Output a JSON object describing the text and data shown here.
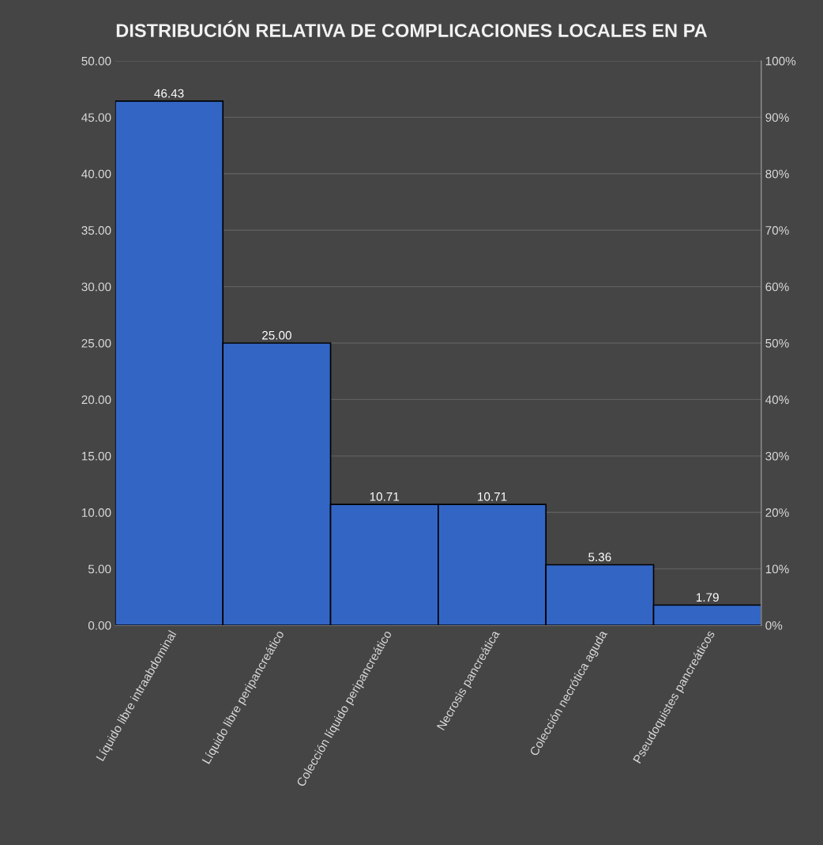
{
  "chart_data": {
    "type": "bar",
    "title": "DISTRIBUCIÓN RELATIVA DE COMPLICACIONES LOCALES EN PA",
    "categories": [
      "Líquido libre intraabdominal",
      "Líquido libre peripancreático",
      "Colección líquido peripancreático",
      "Necrosis pancreática",
      "Colección necrótica aguda",
      "Pseudoquistes pancreáticos"
    ],
    "values": [
      46.43,
      25.0,
      10.71,
      10.71,
      5.36,
      1.79
    ],
    "color": "#3366c4",
    "value_labels": [
      "46.43",
      "25.00",
      "10.71",
      "10.71",
      "5.36",
      "1.79"
    ],
    "ylim": [
      0,
      50
    ],
    "yticks": [
      {
        "value": 0,
        "label": "0.00"
      },
      {
        "value": 5,
        "label": "5.00"
      },
      {
        "value": 10,
        "label": "10.00"
      },
      {
        "value": 15,
        "label": "15.00"
      },
      {
        "value": 20,
        "label": "20.00"
      },
      {
        "value": 25,
        "label": "25.00"
      },
      {
        "value": 30,
        "label": "30.00"
      },
      {
        "value": 35,
        "label": "35.00"
      },
      {
        "value": 40,
        "label": "40.00"
      },
      {
        "value": 45,
        "label": "45.00"
      },
      {
        "value": 50,
        "label": "50.00"
      }
    ],
    "y2lim": [
      0,
      100
    ],
    "y2ticks": [
      {
        "value": 0,
        "label": "0%"
      },
      {
        "value": 10,
        "label": "10%"
      },
      {
        "value": 20,
        "label": "20%"
      },
      {
        "value": 30,
        "label": "30%"
      },
      {
        "value": 40,
        "label": "40%"
      },
      {
        "value": 50,
        "label": "50%"
      },
      {
        "value": 60,
        "label": "60%"
      },
      {
        "value": 70,
        "label": "70%"
      },
      {
        "value": 80,
        "label": "80%"
      },
      {
        "value": 90,
        "label": "90%"
      },
      {
        "value": 100,
        "label": "100%"
      }
    ],
    "grid": "y"
  }
}
